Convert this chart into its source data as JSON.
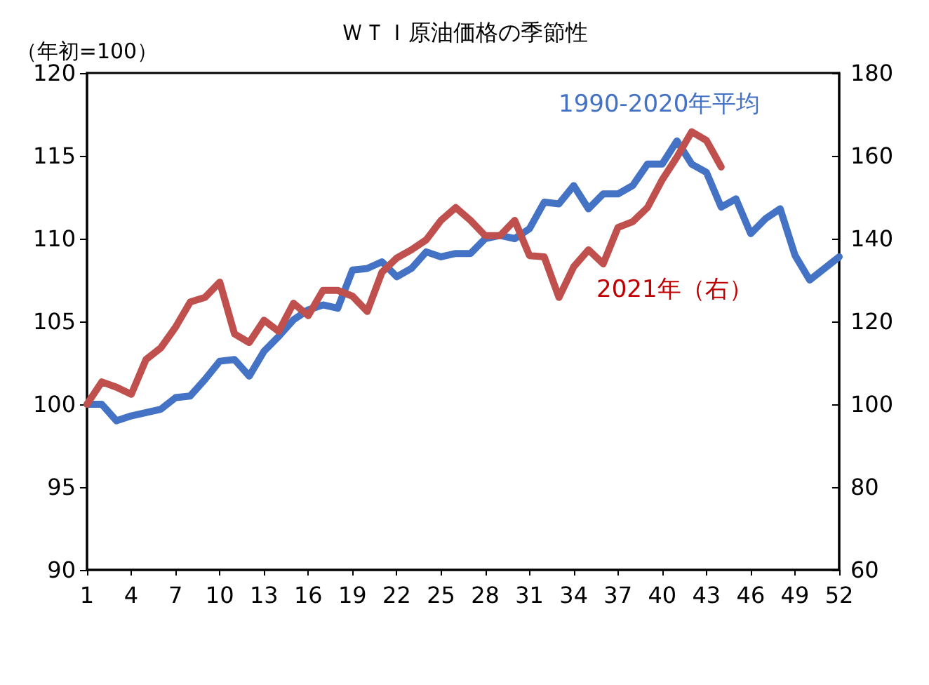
{
  "chart_data": {
    "type": "line",
    "title": "ＷＴＩ原油価格の季節性",
    "ylabel": "（年初=100）",
    "x": [
      1,
      2,
      3,
      4,
      5,
      6,
      7,
      8,
      9,
      10,
      11,
      12,
      13,
      14,
      15,
      16,
      17,
      18,
      19,
      20,
      21,
      22,
      23,
      24,
      25,
      26,
      27,
      28,
      29,
      30,
      31,
      32,
      33,
      34,
      35,
      36,
      37,
      38,
      39,
      40,
      41,
      42,
      43,
      44,
      45,
      46,
      47,
      48,
      49,
      50,
      51,
      52
    ],
    "xlim": [
      1,
      52
    ],
    "xticks": [
      1,
      4,
      7,
      10,
      13,
      16,
      19,
      22,
      25,
      28,
      31,
      34,
      37,
      40,
      43,
      46,
      49,
      52
    ],
    "ylim": [
      90,
      120
    ],
    "yticks": [
      90,
      95,
      100,
      105,
      110,
      115,
      120
    ],
    "y2lim": [
      60,
      180
    ],
    "y2ticks": [
      60,
      80,
      100,
      120,
      140,
      160,
      180
    ],
    "series": [
      {
        "name": "1990-2020年平均",
        "color": "#4472c4",
        "values": [
          100,
          100,
          99.0,
          99.3,
          99.5,
          99.7,
          100.4,
          100.5,
          101.5,
          102.6,
          102.7,
          101.7,
          103.2,
          104.1,
          105.1,
          105.7,
          106.0,
          105.8,
          108.1,
          108.2,
          108.6,
          107.7,
          108.2,
          109.2,
          108.9,
          109.1,
          109.1,
          110.0,
          110.2,
          110.0,
          110.6,
          112.2,
          112.1,
          113.2,
          111.8,
          112.7,
          112.7,
          113.2,
          114.5,
          114.5,
          115.9,
          114.5,
          114.0,
          111.9,
          112.4,
          110.3,
          111.2,
          111.8,
          109.0,
          107.5,
          108.2,
          108.9
        ]
      },
      {
        "name": "2021年（右）",
        "color": "#c0504d",
        "axis": "y2",
        "values": [
          100,
          105.4,
          104.1,
          102.4,
          110.8,
          113.6,
          118.6,
          124.7,
          125.8,
          129.5,
          117.0,
          114.9,
          120.3,
          117.6,
          124.4,
          121.4,
          127.5,
          127.5,
          126.1,
          122.4,
          131.9,
          135.3,
          137.3,
          139.7,
          144.4,
          147.5,
          144.4,
          140.7,
          140.7,
          144.4,
          135.9,
          135.6,
          125.8,
          133.2,
          137.3,
          133.9,
          142.7,
          144.1,
          147.5,
          154.2,
          159.7,
          165.8,
          163.7,
          157.3,
          null,
          null,
          null,
          null,
          null,
          null,
          null,
          null
        ]
      }
    ],
    "grid": false,
    "legend": false,
    "marker": "none",
    "line_style": "solid"
  }
}
